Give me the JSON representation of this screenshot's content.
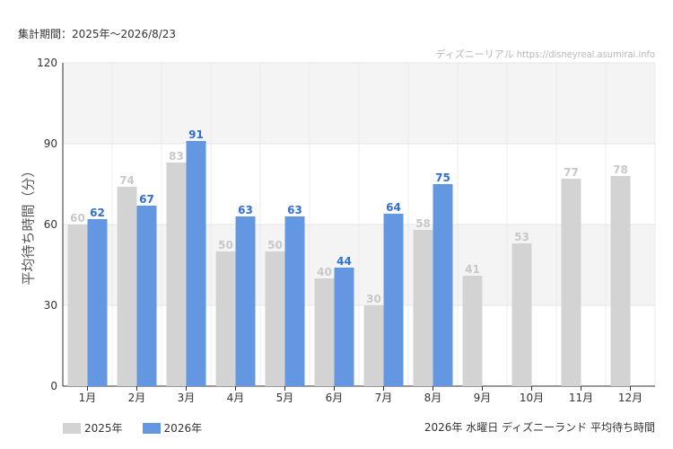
{
  "header": {
    "period": "集計期間：2025年～2026/8/23",
    "watermark": "ディズニーリアル https://disneyreal.asumirai.info"
  },
  "footer": {
    "caption": "2026年 水曜日 ディズニーランド 平均待ち時間"
  },
  "chart_data": {
    "type": "bar",
    "ylabel": "平均待ち時間（分）",
    "ylim": [
      0,
      120
    ],
    "yticks": [
      0,
      30,
      60,
      90,
      120
    ],
    "grid": true,
    "legend_position": "bottom-left",
    "categories": [
      "1月",
      "2月",
      "3月",
      "4月",
      "5月",
      "6月",
      "7月",
      "8月",
      "9月",
      "10月",
      "11月",
      "12月"
    ],
    "series": [
      {
        "name": "2025年",
        "color": "#d3d3d3",
        "label_color": "#c8c8c8",
        "values": [
          60,
          74,
          83,
          50,
          50,
          40,
          30,
          58,
          41,
          53,
          77,
          78
        ]
      },
      {
        "name": "2026年",
        "color": "#6497e2",
        "label_color": "#2f6fd1",
        "values": [
          62,
          67,
          91,
          63,
          63,
          44,
          64,
          75,
          null,
          null,
          null,
          null
        ]
      }
    ]
  }
}
